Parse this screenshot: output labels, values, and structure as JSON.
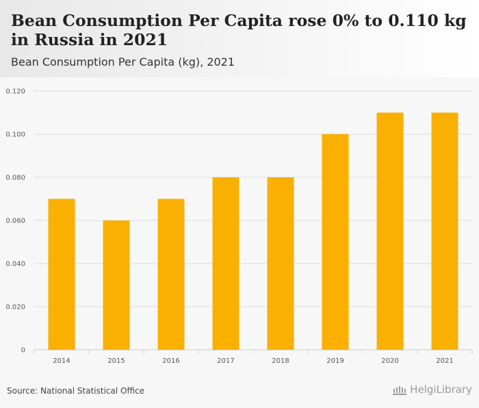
{
  "header": {
    "title": "Bean Consumption Per Capita rose 0% to 0.110 kg in Russia in 2021",
    "subtitle": "Bean Consumption Per Capita (kg), 2021"
  },
  "footer": {
    "source": "Source: National Statistical Office",
    "brand": "HelgiLibrary"
  },
  "colors": {
    "bar": "#f9b000",
    "grid": "#dddddd"
  },
  "chart_data": {
    "type": "bar",
    "title": "Bean Consumption Per Capita (kg), 2021",
    "xlabel": "",
    "ylabel": "",
    "categories": [
      "2014",
      "2015",
      "2016",
      "2017",
      "2018",
      "2019",
      "2020",
      "2021"
    ],
    "values": [
      0.07,
      0.06,
      0.07,
      0.08,
      0.08,
      0.1,
      0.11,
      0.11
    ],
    "ylim": [
      0,
      0.12
    ],
    "yticks": [
      0,
      0.02,
      0.04,
      0.06,
      0.08,
      0.1,
      0.12
    ],
    "ytick_labels": [
      "0",
      "0.020",
      "0.040",
      "0.060",
      "0.080",
      "0.100",
      "0.120"
    ],
    "grid": true,
    "legend": "none"
  }
}
